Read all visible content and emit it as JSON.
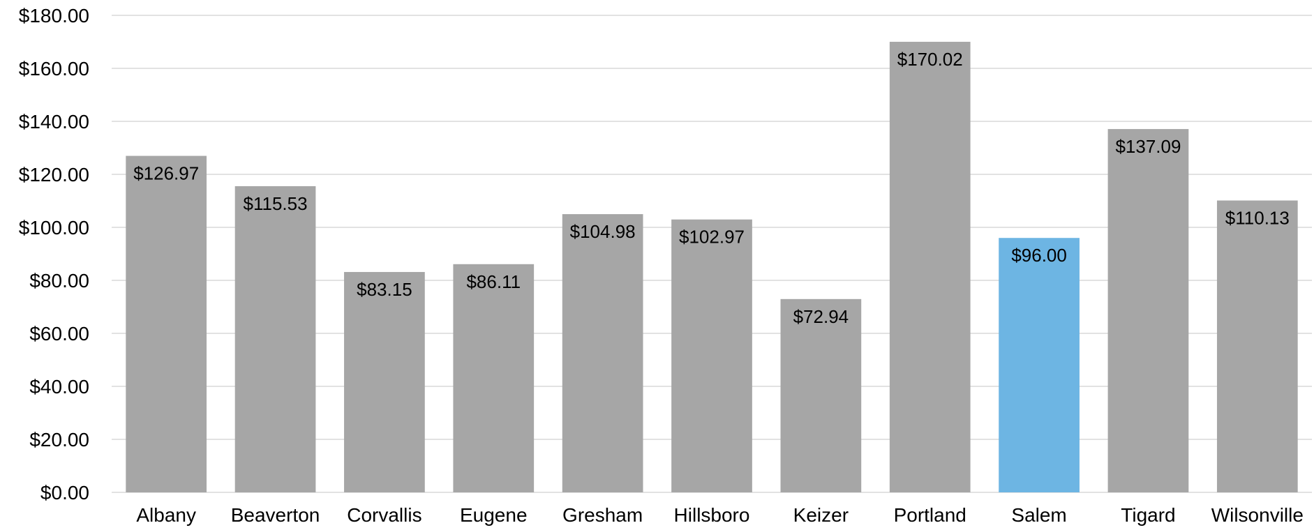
{
  "chart_data": {
    "type": "bar",
    "categories": [
      "Albany",
      "Beaverton",
      "Corvallis",
      "Eugene",
      "Gresham",
      "Hillsboro",
      "Keizer",
      "Portland",
      "Salem",
      "Tigard",
      "Wilsonville"
    ],
    "values": [
      126.97,
      115.53,
      83.15,
      86.11,
      104.98,
      102.97,
      72.94,
      170.02,
      96.0,
      137.09,
      110.13
    ],
    "data_labels": [
      "$126.97",
      "$115.53",
      "$83.15",
      "$86.11",
      "$104.98",
      "$102.97",
      "$72.94",
      "$170.02",
      "$96.00",
      "$137.09",
      "$110.13"
    ],
    "ylim": [
      0,
      180
    ],
    "y_ticks": [
      0,
      20,
      40,
      60,
      80,
      100,
      120,
      140,
      160,
      180
    ],
    "y_tick_labels": [
      "$0.00",
      "$20.00",
      "$40.00",
      "$60.00",
      "$80.00",
      "$100.00",
      "$120.00",
      "$140.00",
      "$160.00",
      "$180.00"
    ],
    "grid": true,
    "legend": "none",
    "colors": {
      "default_bar": "#a6a6a6",
      "highlight_bar": "#6db5e3",
      "grid": "#d9d9d9",
      "text": "#000000"
    },
    "highlight_category": "Salem"
  }
}
